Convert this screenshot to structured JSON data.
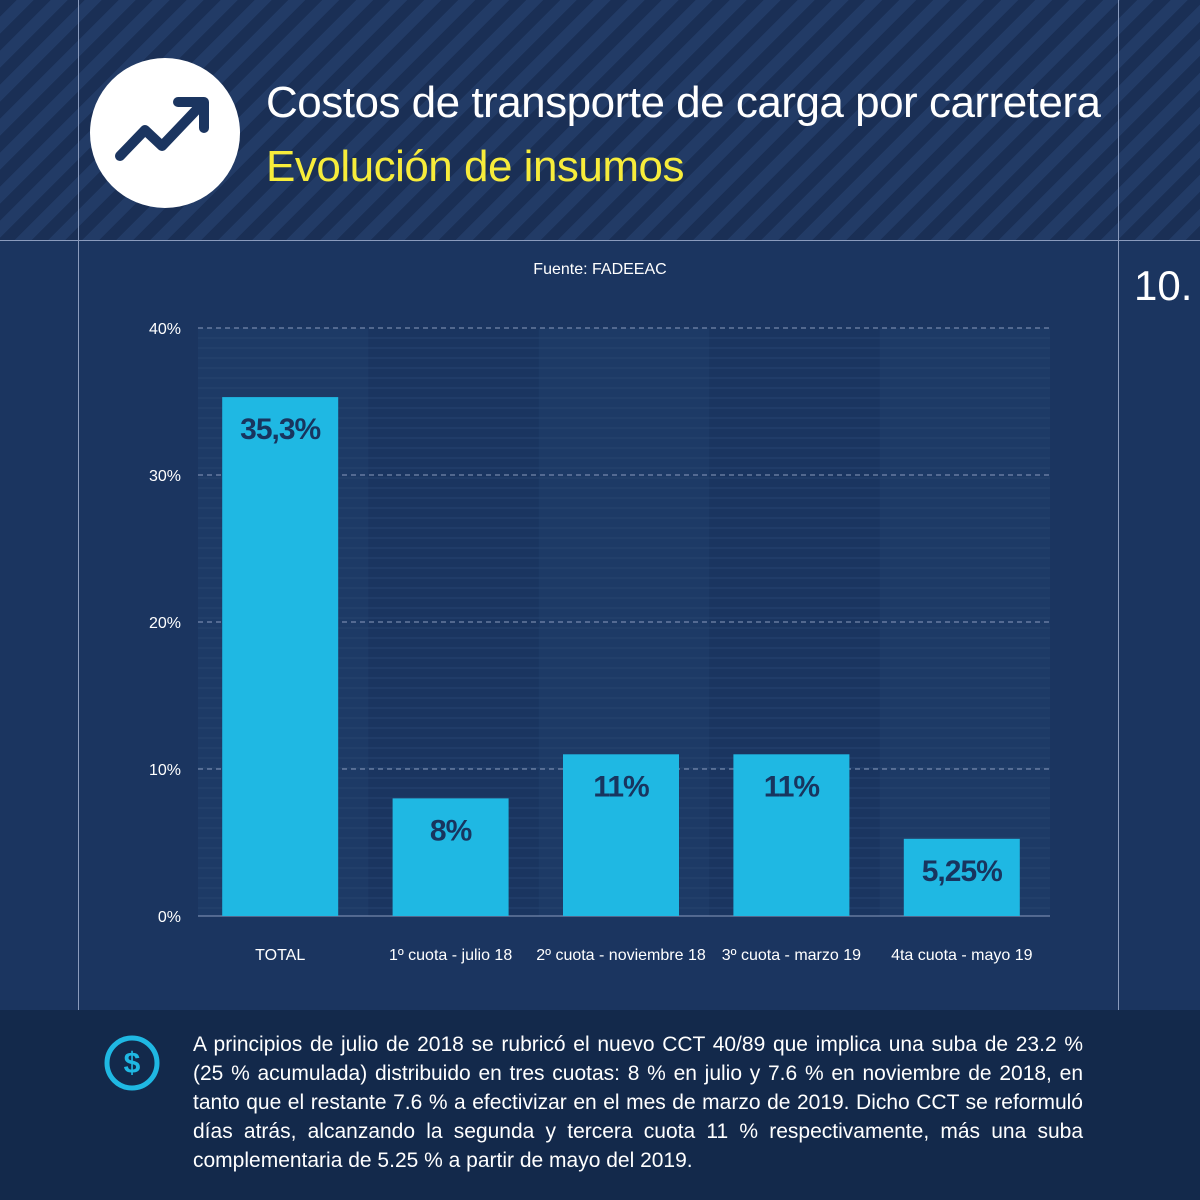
{
  "header": {
    "title": "Costos de transporte de carga por carretera",
    "subtitle": "Evolución de insumos",
    "icon": "trending-up-icon"
  },
  "page_number": "10.",
  "source": "Fuente: FADEEAC",
  "colors": {
    "background": "#1b3560",
    "bar": "#1fb8e3",
    "bar_label": "#18355f",
    "subtitle": "#f7ec3b"
  },
  "chart_data": {
    "type": "bar",
    "categories": [
      "TOTAL",
      "1º cuota - julio 18",
      "2º cuota - noviembre 18",
      "3º cuota - marzo 19",
      "4ta cuota - mayo 19"
    ],
    "values": [
      35.3,
      8,
      11,
      11,
      5.25
    ],
    "value_labels": [
      "35,3%",
      "8%",
      "11%",
      "11%",
      "5,25%"
    ],
    "title": "",
    "xlabel": "",
    "ylabel": "",
    "ylim": [
      0,
      40
    ],
    "yticks": [
      "0%",
      "10%",
      "20%",
      "30%",
      "40%"
    ],
    "grid": true,
    "legend": "none"
  },
  "footer": {
    "icon": "dollar-icon",
    "text": "A principios de julio de 2018 se rubricó el nuevo CCT 40/89 que implica una suba de 23.2 % (25 % acumulada) distribuido en tres cuotas: 8 % en julio y 7.6 % en noviembre de 2018, en tanto que el restante 7.6 % a efectivizar en el mes de marzo de 2019. Dicho CCT se reformuló días atrás, alcanzando la segunda y tercera cuota 11 % respectivamente, más una suba complementaria de 5.25 % a partir de mayo del 2019."
  }
}
